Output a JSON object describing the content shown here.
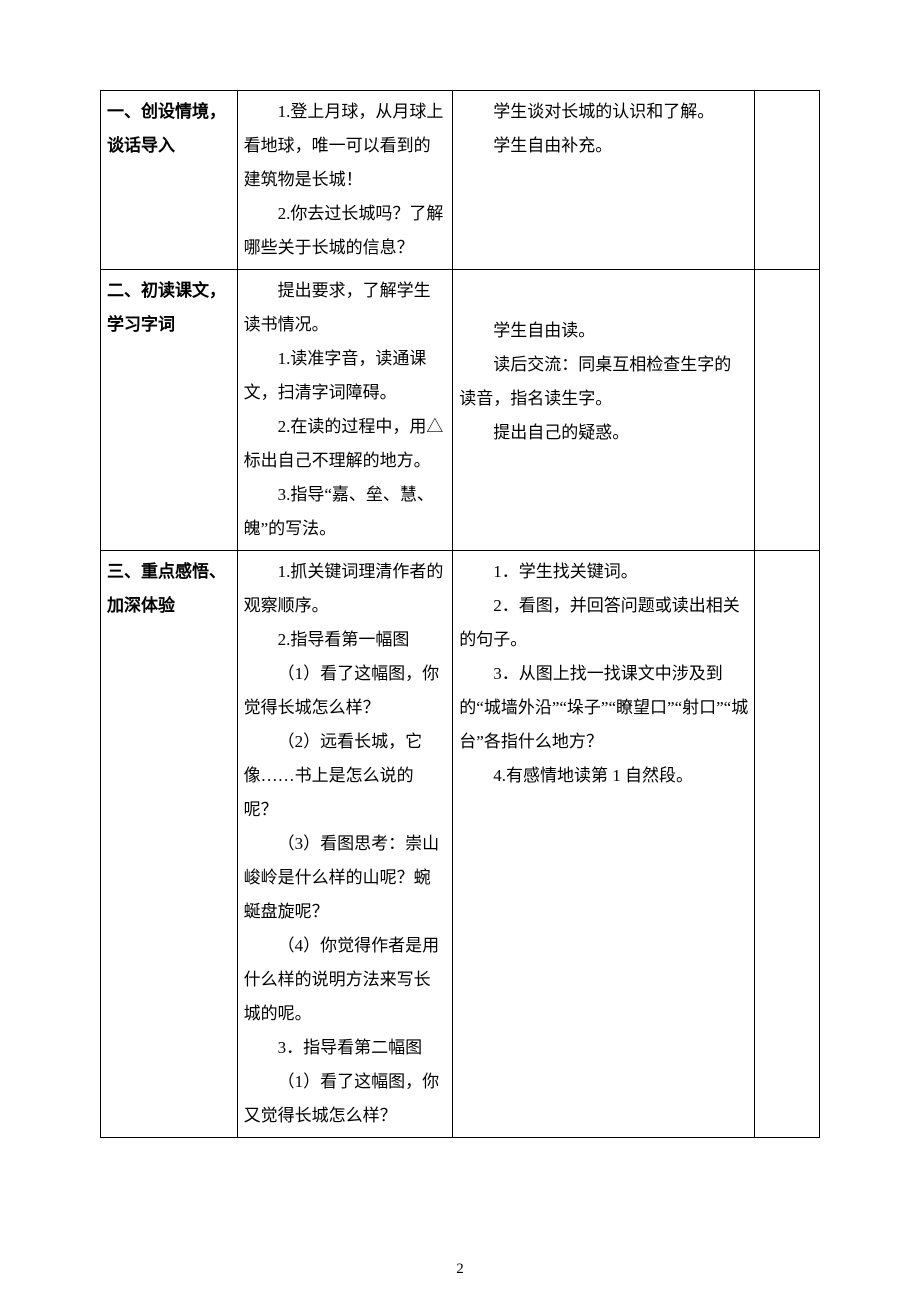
{
  "page_number": "2",
  "colors": {
    "text": "#000000",
    "background": "#ffffff",
    "border": "#000000"
  },
  "typography": {
    "font_family": "SimSun",
    "base_font_size_pt": 12,
    "line_height": 2.0,
    "heading_weight": "bold"
  },
  "table": {
    "column_widths_pct": [
      19,
      30,
      42,
      9
    ],
    "rows": [
      {
        "section_title": "一、创设情境，谈话导入",
        "teacher": [
          "1.登上月球，从月球上看地球，唯一可以看到的建筑物是长城！",
          "2.你去过长城吗？了解哪些关于长城的信息？"
        ],
        "student": [
          "学生谈对长城的认识和了解。",
          "学生自由补充。"
        ],
        "note": ""
      },
      {
        "section_title": "二、初读课文，学习字词",
        "teacher": [
          "提出要求，了解学生读书情况。",
          "1.读准字音，读通课文，扫清字词障碍。",
          "2.在读的过程中，用△标出自己不理解的地方。",
          "3.指导“嘉、垒、慧、魄”的写法。"
        ],
        "student": [
          "学生自由读。",
          "读后交流：同桌互相检查生字的读音，指名读生字。",
          "提出自己的疑惑。"
        ],
        "note": ""
      },
      {
        "section_title": "三、重点感悟、加深体验",
        "teacher": [
          "1.抓关键词理清作者的观察顺序。",
          "2.指导看第一幅图",
          "（1）看了这幅图，你觉得长城怎么样？",
          "（2）远看长城，它像……书上是怎么说的呢？",
          "（3）看图思考：崇山峻岭是什么样的山呢？蜿蜒盘旋呢？",
          "（4）你觉得作者是用什么样的说明方法来写长城的呢。",
          "3．指导看第二幅图",
          "（1）看了这幅图，你又觉得长城怎么样？"
        ],
        "student": [
          "1．学生找关键词。",
          "2．看图，并回答问题或读出相关的句子。",
          "3．从图上找一找课文中涉及到的“城墙外沿”“垛子”“瞭望口”“射口”“城台”各指什么地方？",
          "4.有感情地读第 1 自然段。"
        ],
        "note": ""
      }
    ]
  }
}
